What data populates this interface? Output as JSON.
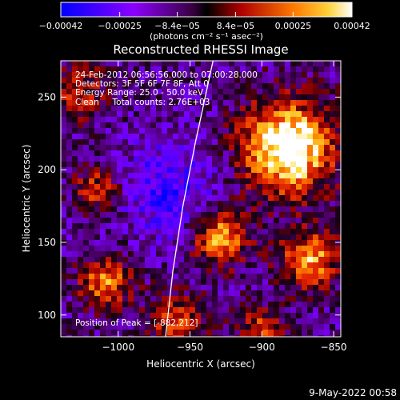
{
  "chart_data": {
    "type": "heatmap",
    "title": "Reconstructed RHESSI Image",
    "xlabel": "Heliocentric X (arcsec)",
    "ylabel": "Heliocentric Y (arcsec)",
    "xlim": [
      -1040,
      -845
    ],
    "ylim": [
      85,
      275
    ],
    "x_ticks": [
      -1000,
      -950,
      -900,
      -850
    ],
    "x_tick_labels": [
      "−1000",
      "−950",
      "−900",
      "−850"
    ],
    "y_ticks": [
      100,
      150,
      200,
      250
    ],
    "y_tick_labels": [
      "100",
      "150",
      "200",
      "250"
    ],
    "colorbar": {
      "range": [
        -0.00042,
        0.00042
      ],
      "ticks": [
        -0.00042,
        -0.00025,
        -8.4e-05,
        8.4e-05,
        0.00025,
        0.00042
      ],
      "tick_labels": [
        "−0.00042",
        "−0.00025",
        "−8.4e−05",
        "8.4e−05",
        "0.00025",
        "0.00042"
      ],
      "unit": "(photons cm⁻² s⁻¹ asec⁻²)",
      "colors": [
        "#0000ff",
        "#8c00ff",
        "#5a006a",
        "#000000",
        "#d81400",
        "#ff8c00",
        "#ffffff"
      ]
    },
    "annotations": [
      "24-Feb-2012 06:56:56.000 to 07:00:28.000",
      "Detectors: 3F 5F 6F 7F 8F, Att 0",
      "Energy Range: 25.0 - 50.0 keV",
      "Clean     Total counts: 2.76E+03"
    ],
    "peak_label": "Position of Peak = [-882,212]",
    "peak": [
      -882,
      212
    ],
    "limb_curve": [
      [
        -967,
        85
      ],
      [
        -962,
        130
      ],
      [
        -955,
        175
      ],
      [
        -946,
        220
      ],
      [
        -934,
        275
      ]
    ],
    "grid": false
  },
  "footer": {
    "date": "9-May-2022 00:58"
  }
}
